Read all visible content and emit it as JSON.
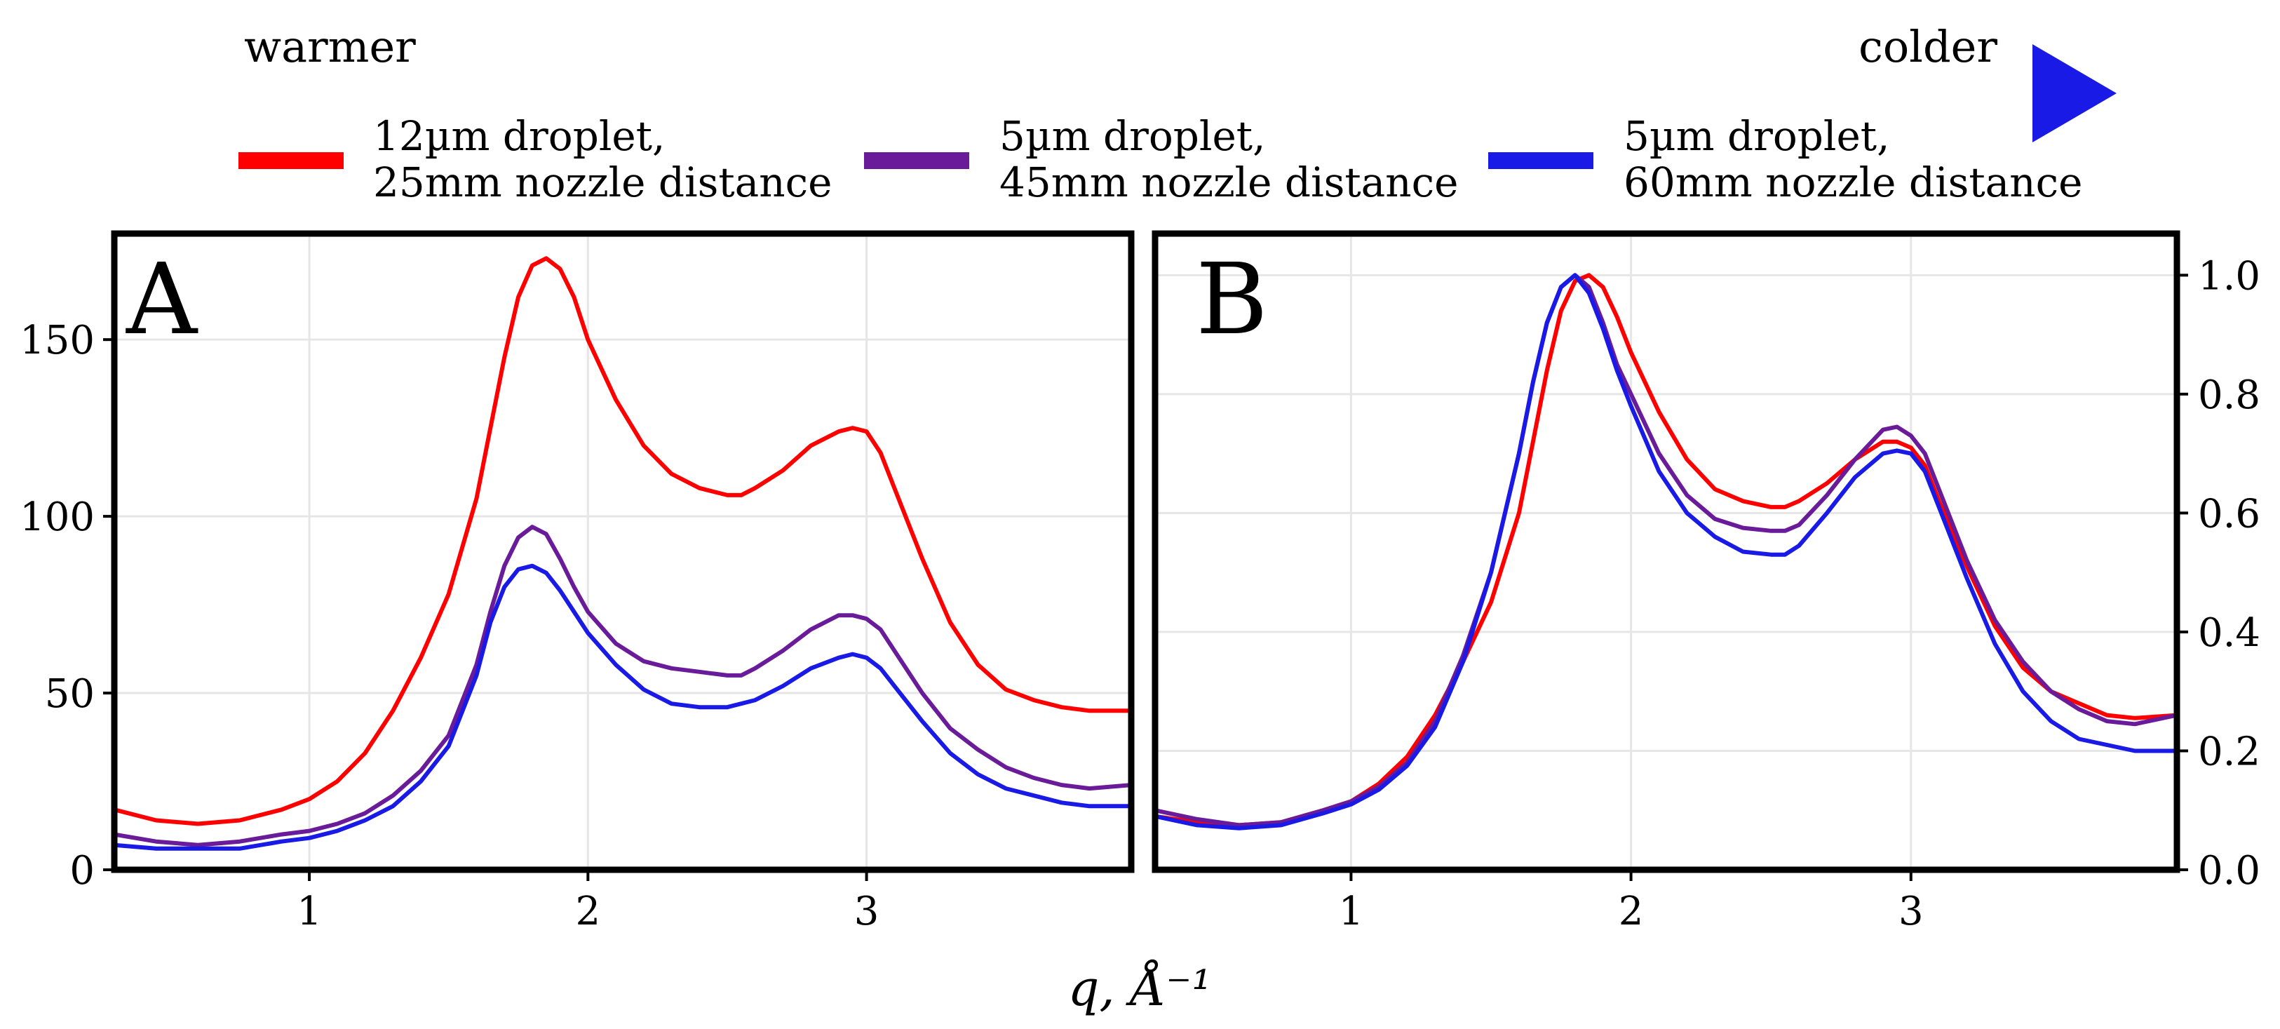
{
  "gradient": {
    "start_label": "warmer",
    "end_label": "colder",
    "start_color": "#ff0000",
    "end_color": "#1a1ae6"
  },
  "legend": [
    {
      "line1": "12µm droplet,",
      "line2": "25mm nozzle distance",
      "color": "#ff0000"
    },
    {
      "line1": "5µm droplet,",
      "line2": "45mm nozzle distance",
      "color": "#6a1b9a"
    },
    {
      "line1": "5µm droplet,",
      "line2": "60mm nozzle distance",
      "color": "#1a1ae6"
    }
  ],
  "shared_xlabel": "q, Å⁻¹",
  "chart_data": [
    {
      "type": "line",
      "panel_label": "A",
      "xlim": [
        0.3,
        3.95
      ],
      "ylim": [
        0,
        180
      ],
      "xticks": [
        1,
        2,
        3
      ],
      "yticks": [
        0,
        50,
        100,
        150
      ],
      "y_axis_side": "left",
      "grid": true,
      "series": [
        {
          "name": "12µm droplet, 25mm nozzle distance",
          "color": "#ff0000",
          "x": [
            0.3,
            0.45,
            0.6,
            0.75,
            0.9,
            1.0,
            1.1,
            1.2,
            1.3,
            1.4,
            1.5,
            1.6,
            1.65,
            1.7,
            1.75,
            1.8,
            1.85,
            1.9,
            1.95,
            2.0,
            2.1,
            2.2,
            2.3,
            2.4,
            2.5,
            2.55,
            2.6,
            2.7,
            2.8,
            2.9,
            2.95,
            3.0,
            3.05,
            3.1,
            3.2,
            3.3,
            3.4,
            3.5,
            3.6,
            3.7,
            3.8,
            3.95
          ],
          "y": [
            17,
            14,
            13,
            14,
            17,
            20,
            25,
            33,
            45,
            60,
            78,
            105,
            125,
            145,
            162,
            171,
            173,
            170,
            162,
            150,
            133,
            120,
            112,
            108,
            106,
            106,
            108,
            113,
            120,
            124,
            125,
            124,
            118,
            108,
            88,
            70,
            58,
            51,
            48,
            46,
            45,
            45
          ]
        },
        {
          "name": "5µm droplet, 45mm nozzle distance",
          "color": "#6a1b9a",
          "x": [
            0.3,
            0.45,
            0.6,
            0.75,
            0.9,
            1.0,
            1.1,
            1.2,
            1.3,
            1.4,
            1.5,
            1.6,
            1.65,
            1.7,
            1.75,
            1.8,
            1.85,
            1.9,
            1.95,
            2.0,
            2.1,
            2.2,
            2.3,
            2.4,
            2.5,
            2.55,
            2.6,
            2.7,
            2.8,
            2.9,
            2.95,
            3.0,
            3.05,
            3.1,
            3.2,
            3.3,
            3.4,
            3.5,
            3.6,
            3.7,
            3.8,
            3.95
          ],
          "y": [
            10,
            8,
            7,
            8,
            10,
            11,
            13,
            16,
            21,
            28,
            38,
            58,
            73,
            86,
            94,
            97,
            95,
            88,
            80,
            73,
            64,
            59,
            57,
            56,
            55,
            55,
            57,
            62,
            68,
            72,
            72,
            71,
            68,
            62,
            50,
            40,
            34,
            29,
            26,
            24,
            23,
            24
          ]
        },
        {
          "name": "5µm droplet, 60mm nozzle distance",
          "color": "#1a1ae6",
          "x": [
            0.3,
            0.45,
            0.6,
            0.75,
            0.9,
            1.0,
            1.1,
            1.2,
            1.3,
            1.4,
            1.5,
            1.6,
            1.65,
            1.7,
            1.75,
            1.8,
            1.85,
            1.9,
            1.95,
            2.0,
            2.1,
            2.2,
            2.3,
            2.4,
            2.5,
            2.55,
            2.6,
            2.7,
            2.8,
            2.9,
            2.95,
            3.0,
            3.05,
            3.1,
            3.2,
            3.3,
            3.4,
            3.5,
            3.6,
            3.7,
            3.8,
            3.95
          ],
          "y": [
            7,
            6,
            6,
            6,
            8,
            9,
            11,
            14,
            18,
            25,
            35,
            55,
            70,
            80,
            85,
            86,
            84,
            79,
            73,
            67,
            58,
            51,
            47,
            46,
            46,
            47,
            48,
            52,
            57,
            60,
            61,
            60,
            57,
            52,
            42,
            33,
            27,
            23,
            21,
            19,
            18,
            18
          ]
        }
      ]
    },
    {
      "type": "line",
      "panel_label": "B",
      "xlim": [
        0.3,
        3.95
      ],
      "ylim": [
        0,
        1.07
      ],
      "xticks": [
        1,
        2,
        3
      ],
      "yticks": [
        0.0,
        0.2,
        0.4,
        0.6,
        0.8,
        1.0
      ],
      "ytick_labels": [
        "0.0",
        "0.2",
        "0.4",
        "0.6",
        "0.8",
        "1.0"
      ],
      "y_axis_side": "right",
      "grid": true,
      "series": [
        {
          "name": "12µm droplet, 25mm nozzle distance",
          "color": "#ff0000",
          "x": [
            0.3,
            0.45,
            0.6,
            0.75,
            0.9,
            1.0,
            1.1,
            1.2,
            1.3,
            1.4,
            1.5,
            1.6,
            1.65,
            1.7,
            1.75,
            1.8,
            1.85,
            1.9,
            1.95,
            2.0,
            2.1,
            2.2,
            2.3,
            2.4,
            2.5,
            2.55,
            2.6,
            2.7,
            2.8,
            2.9,
            2.95,
            3.0,
            3.05,
            3.1,
            3.2,
            3.3,
            3.4,
            3.5,
            3.6,
            3.7,
            3.8,
            3.95
          ],
          "y": [
            0.09,
            0.08,
            0.075,
            0.08,
            0.1,
            0.115,
            0.145,
            0.19,
            0.26,
            0.35,
            0.45,
            0.6,
            0.72,
            0.84,
            0.94,
            0.99,
            1.0,
            0.98,
            0.93,
            0.87,
            0.77,
            0.69,
            0.64,
            0.62,
            0.61,
            0.61,
            0.62,
            0.65,
            0.69,
            0.72,
            0.72,
            0.71,
            0.68,
            0.62,
            0.51,
            0.41,
            0.34,
            0.3,
            0.28,
            0.26,
            0.255,
            0.26
          ]
        },
        {
          "name": "5µm droplet, 45mm nozzle distance",
          "color": "#6a1b9a",
          "x": [
            0.3,
            0.45,
            0.6,
            0.75,
            0.9,
            1.0,
            1.1,
            1.2,
            1.3,
            1.4,
            1.5,
            1.6,
            1.65,
            1.7,
            1.75,
            1.8,
            1.85,
            1.9,
            1.95,
            2.0,
            2.1,
            2.2,
            2.3,
            2.4,
            2.5,
            2.55,
            2.6,
            2.7,
            2.8,
            2.9,
            2.95,
            3.0,
            3.05,
            3.1,
            3.2,
            3.3,
            3.4,
            3.5,
            3.6,
            3.7,
            3.8,
            3.95
          ],
          "y": [
            0.1,
            0.085,
            0.075,
            0.08,
            0.1,
            0.115,
            0.14,
            0.18,
            0.25,
            0.36,
            0.5,
            0.7,
            0.82,
            0.92,
            0.98,
            1.0,
            0.98,
            0.92,
            0.85,
            0.8,
            0.7,
            0.63,
            0.59,
            0.575,
            0.57,
            0.57,
            0.58,
            0.63,
            0.69,
            0.74,
            0.745,
            0.73,
            0.7,
            0.64,
            0.52,
            0.42,
            0.35,
            0.3,
            0.27,
            0.25,
            0.245,
            0.26
          ]
        },
        {
          "name": "5µm droplet, 60mm nozzle distance",
          "color": "#1a1ae6",
          "x": [
            0.3,
            0.45,
            0.6,
            0.75,
            0.9,
            1.0,
            1.1,
            1.2,
            1.3,
            1.4,
            1.5,
            1.6,
            1.65,
            1.7,
            1.75,
            1.8,
            1.85,
            1.9,
            1.95,
            2.0,
            2.1,
            2.2,
            2.3,
            2.4,
            2.5,
            2.55,
            2.6,
            2.7,
            2.8,
            2.9,
            2.95,
            3.0,
            3.05,
            3.1,
            3.2,
            3.3,
            3.4,
            3.5,
            3.6,
            3.7,
            3.8,
            3.95
          ],
          "y": [
            0.09,
            0.075,
            0.07,
            0.075,
            0.095,
            0.11,
            0.135,
            0.175,
            0.24,
            0.35,
            0.5,
            0.7,
            0.82,
            0.92,
            0.98,
            1.0,
            0.97,
            0.91,
            0.84,
            0.78,
            0.67,
            0.6,
            0.56,
            0.535,
            0.53,
            0.53,
            0.545,
            0.6,
            0.66,
            0.7,
            0.705,
            0.7,
            0.67,
            0.61,
            0.49,
            0.38,
            0.3,
            0.25,
            0.22,
            0.21,
            0.2,
            0.2
          ]
        }
      ]
    }
  ]
}
